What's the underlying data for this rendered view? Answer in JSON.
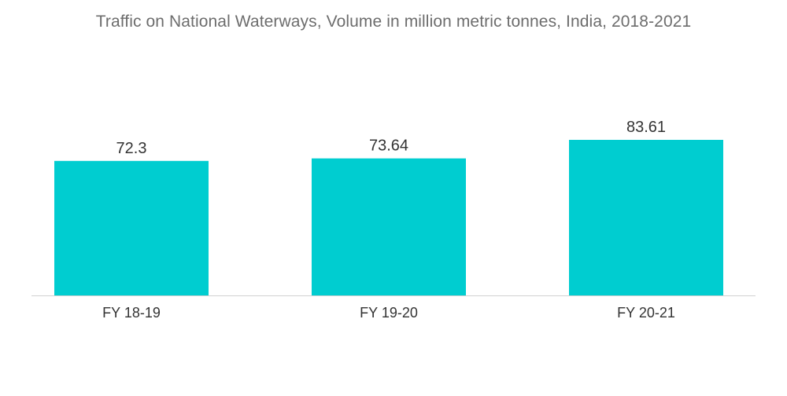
{
  "chart_data": {
    "type": "bar",
    "title": "Traffic on National Waterways, Volume in million metric tonnes, India, 2018-2021",
    "categories": [
      "FY 18-19",
      "FY 19-20",
      "FY 20-21"
    ],
    "values": [
      72.3,
      73.64,
      83.61
    ],
    "value_labels": [
      "72.3",
      "73.64",
      "83.61"
    ],
    "xlabel": "",
    "ylabel": "",
    "ylim": [
      0,
      83.61
    ],
    "grid": false,
    "legend": "none",
    "bar_color": "#00CDD0",
    "baseline_color": "#d0d0d0"
  }
}
